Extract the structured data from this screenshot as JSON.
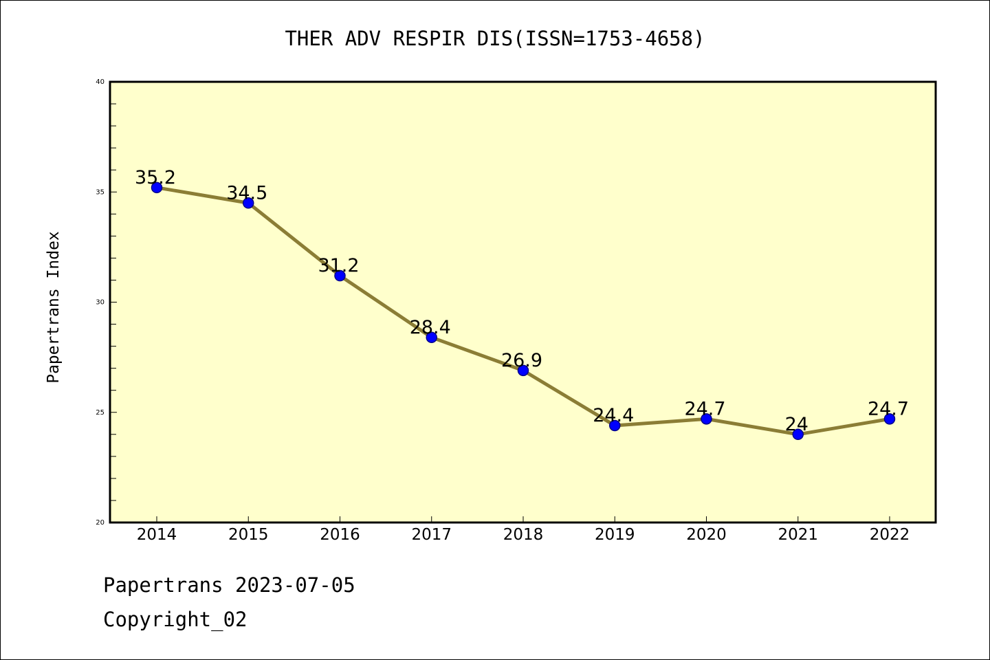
{
  "chart_data": {
    "type": "line",
    "title": "THER ADV RESPIR DIS(ISSN=1753-4658)",
    "xlabel": "",
    "ylabel": "Papertrans Index",
    "categories": [
      "2014",
      "2015",
      "2016",
      "2017",
      "2018",
      "2019",
      "2020",
      "2021",
      "2022"
    ],
    "series": [
      {
        "values": [
          35.2,
          34.5,
          31.2,
          28.4,
          26.9,
          24.4,
          24.7,
          24,
          24.7
        ],
        "data_labels": [
          "35.2",
          "34.5",
          "31.2",
          "28.4",
          "26.9",
          "24.4",
          "24.7",
          "24",
          "24.7"
        ]
      }
    ],
    "ylim": [
      20,
      40
    ],
    "yticks": [
      "20",
      "25",
      "30",
      "35",
      "40"
    ],
    "grid": false,
    "legend": "none",
    "colors": {
      "plot_background": "#ffffcc",
      "line": "#8b7d35",
      "marker_fill": "#0000ff",
      "marker_edge": "#00008b",
      "axis": "#000000"
    }
  },
  "footer": {
    "line1": "Papertrans 2023-07-05",
    "line2": "Copyright_02"
  }
}
